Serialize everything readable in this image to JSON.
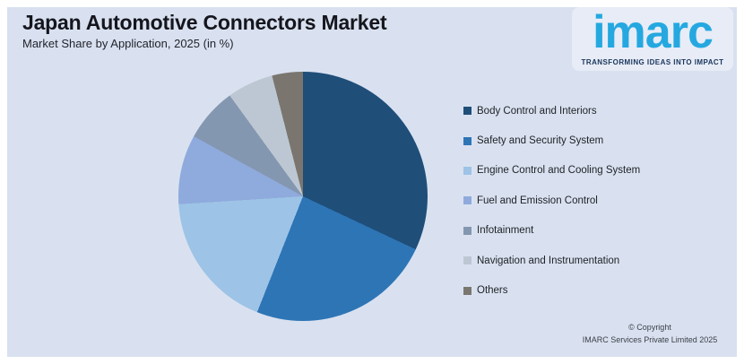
{
  "header": {
    "title": "Japan Automotive Connectors Market",
    "subtitle": "Market Share by Application, 2025 (in %)"
  },
  "logo": {
    "wordmark": "imarc",
    "tagline": "TRANSFORMING IDEAS INTO IMPACT",
    "brand_color": "#25A8E0",
    "tagline_color": "#1B365D"
  },
  "chart_data": {
    "type": "pie",
    "title": "Japan Automotive Connectors Market",
    "subtitle": "Market Share by Application, 2025 (in %)",
    "unit": "% market share (values estimated from arc angles; no data labels shown)",
    "legend_position": "right",
    "start_angle_deg": 0,
    "direction": "clockwise",
    "segments": [
      {
        "label": "Body Control and Interiors",
        "value": 32,
        "color": "#1F4E79"
      },
      {
        "label": "Safety and Security System",
        "value": 24,
        "color": "#2E75B6"
      },
      {
        "label": "Engine Control and Cooling System",
        "value": 18,
        "color": "#9DC3E6"
      },
      {
        "label": "Fuel and Emission Control",
        "value": 9,
        "color": "#8FAADC"
      },
      {
        "label": "Infotainment",
        "value": 7,
        "color": "#8497B0"
      },
      {
        "label": "Navigation and Instrumentation",
        "value": 6,
        "color": "#BDC7D3"
      },
      {
        "label": "Others",
        "value": 4,
        "color": "#7A766F"
      }
    ]
  },
  "footer": {
    "copyright_line1": "© Copyright",
    "copyright_line2": "IMARC Services Private Limited 2025"
  },
  "colors": {
    "panel_background": "#D9E1F0",
    "frame": "#FFFFFF",
    "title_text": "#15161D"
  }
}
